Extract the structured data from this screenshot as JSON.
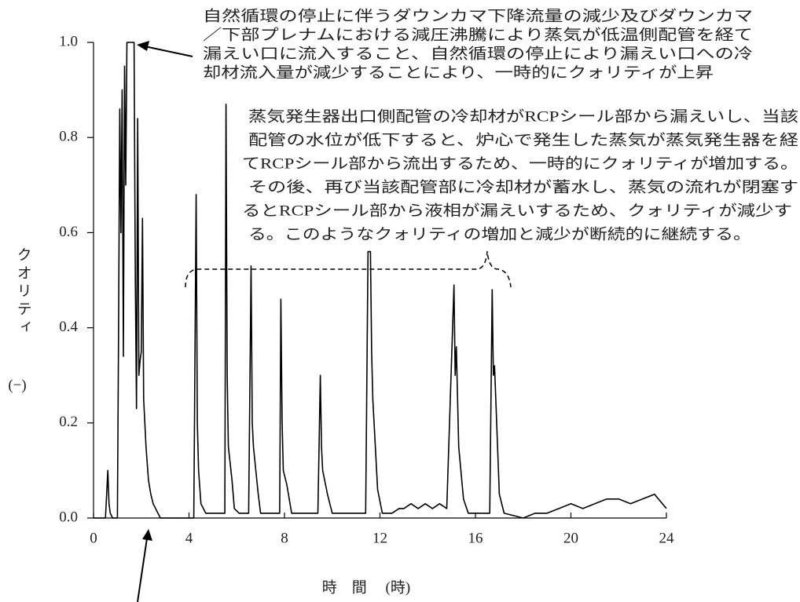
{
  "chart_data": {
    "type": "line",
    "annotations": [
      [
        "自然循環の停止に伴うダウンカマ下降流量の減少及びダウンカマ",
        "／下部プレナムにおける減圧沸騰により蒸気が低温側配管を経て",
        "漏えい口に流入すること、自然循環の停止により漏えい口への冷",
        "却材流入量が減少することにより、一時的にクォリティが上昇"
      ],
      [
        "蒸気発生器出口側配管の冷却材がRCPシール部から漏えいし、当該",
        "配管の水位が低下すると、炉心で発生した蒸気が蒸気発生器を経",
        "てRCPシール部から流出するため、一時的にクォリティが増加する。",
        "その後、再び当該配管部に冷却材が蓄水し、蒸気の流れが閉塞す",
        "るとRCPシール部から液相が漏えいするため、クォリティが減少す",
        "る。このようなクォリティの増加と減少が断続的に継続する。"
      ]
    ],
    "y_label": "クオリティ",
    "y_unit": "(−)",
    "x_label": "時　間　 (時)",
    "xlim": [
      0,
      24
    ],
    "xticks": [
      0,
      4,
      8,
      12,
      16,
      20,
      24
    ],
    "ylim": [
      0,
      1
    ],
    "yticks": [
      {
        "value": 0,
        "label": "0.0"
      },
      0.2,
      0.4,
      0.6,
      0.8,
      {
        "value": 1,
        "label": "1.0"
      }
    ],
    "series": [
      {
        "color": "#000000",
        "x": [
          0,
          0.5,
          0.55,
          0.6,
          0.65,
          0.7,
          0.8,
          1.0,
          1.05,
          1.1,
          1.15,
          1.2,
          1.25,
          1.3,
          1.35,
          1.4,
          1.5,
          1.6,
          1.7,
          1.75,
          1.8,
          1.85,
          1.9,
          1.95,
          2.0,
          2.05,
          2.1,
          2.15,
          2.2,
          2.3,
          2.4,
          2.5,
          2.7,
          2.8,
          4.2,
          4.3,
          4.35,
          4.4,
          4.5,
          4.7,
          5.0,
          5.5,
          5.55,
          5.6,
          5.65,
          5.8,
          5.9,
          6.1,
          6.5,
          6.6,
          6.65,
          6.7,
          6.9,
          7.0,
          7.5,
          7.8,
          7.85,
          7.9,
          7.95,
          8.1,
          8.3,
          9.0,
          9.4,
          9.5,
          9.55,
          9.6,
          9.8,
          10.0,
          11.0,
          11.4,
          11.5,
          11.6,
          11.65,
          11.7,
          11.9,
          12.1,
          12.5,
          12.8,
          13.0,
          13.3,
          13.6,
          13.9,
          14.2,
          14.5,
          14.8,
          15.1,
          15.15,
          15.2,
          15.3,
          15.5,
          15.7,
          16.2,
          16.6,
          16.7,
          16.75,
          16.8,
          17.0,
          17.2,
          18.0,
          18.5,
          19.0,
          19.5,
          20.0,
          20.5,
          21.0,
          21.5,
          22.0,
          22.5,
          23.0,
          23.5,
          24.0
        ],
        "values": [
          0,
          0,
          0.05,
          0.1,
          0.03,
          0.01,
          0,
          0,
          0.4,
          0.86,
          0.6,
          0.9,
          0.34,
          0.95,
          0.7,
          1.0,
          1.0,
          1.0,
          1.0,
          0.5,
          0.23,
          0.84,
          0.3,
          0.33,
          0.35,
          0.63,
          0.25,
          0.2,
          0.15,
          0.08,
          0.05,
          0.03,
          0.01,
          0,
          0,
          0.68,
          0.2,
          0.1,
          0.03,
          0.01,
          0.01,
          0.01,
          0.87,
          0.3,
          0.15,
          0.08,
          0.02,
          0.01,
          0.01,
          0.53,
          0.2,
          0.15,
          0.05,
          0.01,
          0.01,
          0.01,
          0.46,
          0.2,
          0.1,
          0.07,
          0.01,
          0.01,
          0.01,
          0.3,
          0.15,
          0.1,
          0.05,
          0.01,
          0.01,
          0.01,
          0.56,
          0.56,
          0.35,
          0.25,
          0.06,
          0.01,
          0.01,
          0.02,
          0.02,
          0.03,
          0.02,
          0.03,
          0.02,
          0.03,
          0.02,
          0.49,
          0.3,
          0.36,
          0.15,
          0.04,
          0.01,
          0.01,
          0.01,
          0.48,
          0.3,
          0.32,
          0.05,
          0.01,
          0,
          0.01,
          0.01,
          0.02,
          0.03,
          0.02,
          0.03,
          0.04,
          0.04,
          0.03,
          0.04,
          0.05,
          0.02
        ]
      }
    ]
  }
}
